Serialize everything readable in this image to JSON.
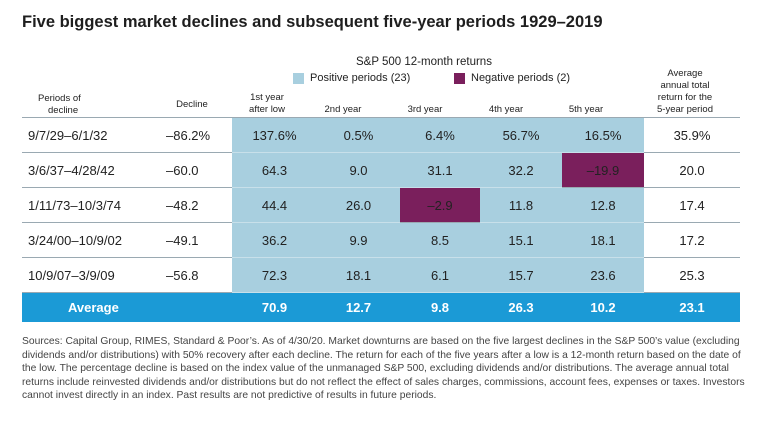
{
  "title": "Five biggest market declines and subsequent five-year periods 1929–2019",
  "legend": {
    "title": "S&P 500 12-month returns",
    "positive": {
      "label": "Positive periods (23)",
      "color": "#a8cfdf"
    },
    "negative": {
      "label": "Negative periods (2)",
      "color": "#7a1f5c"
    }
  },
  "headers": {
    "period": [
      "Periods of",
      "decline"
    ],
    "decline": "Decline",
    "year1": [
      "1st year",
      "after low"
    ],
    "year2": "2nd year",
    "year3": "3rd year",
    "year4": "4th year",
    "year5": "5th year",
    "avg": [
      "Average",
      "annual total",
      "return for the",
      "5-year period"
    ]
  },
  "average_row_color": "#1b9ad6",
  "chart_data": {
    "type": "table",
    "title": "Five biggest market declines and subsequent five-year periods 1929–2019",
    "columns": [
      "Periods of decline",
      "Decline",
      "1st year after low",
      "2nd year",
      "3rd year",
      "4th year",
      "5th year",
      "Average annual total return for the 5-year period"
    ],
    "rows": [
      {
        "period": "9/7/29–6/1/32",
        "decline": "–86.2%",
        "returns": [
          "137.6%",
          "0.5%",
          "6.4%",
          "56.7%",
          "16.5%"
        ],
        "negative": [
          false,
          false,
          false,
          false,
          false
        ],
        "avg": "35.9%"
      },
      {
        "period": "3/6/37–4/28/42",
        "decline": "–60.0",
        "returns": [
          "64.3",
          "9.0",
          "31.1",
          "32.2",
          "–19.9"
        ],
        "negative": [
          false,
          false,
          false,
          false,
          true
        ],
        "avg": "20.0"
      },
      {
        "period": "1/11/73–10/3/74",
        "decline": "–48.2",
        "returns": [
          "44.4",
          "26.0",
          "–2.9",
          "11.8",
          "12.8"
        ],
        "negative": [
          false,
          false,
          true,
          false,
          false
        ],
        "avg": "17.4"
      },
      {
        "period": "3/24/00–10/9/02",
        "decline": "–49.1",
        "returns": [
          "36.2",
          "9.9",
          "8.5",
          "15.1",
          "18.1"
        ],
        "negative": [
          false,
          false,
          false,
          false,
          false
        ],
        "avg": "17.2"
      },
      {
        "period": "10/9/07–3/9/09",
        "decline": "–56.8",
        "returns": [
          "72.3",
          "18.1",
          "6.1",
          "15.7",
          "23.6"
        ],
        "negative": [
          false,
          false,
          false,
          false,
          false
        ],
        "avg": "25.3"
      }
    ],
    "average": {
      "label": "Average",
      "returns": [
        "70.9",
        "12.7",
        "9.8",
        "26.3",
        "10.2"
      ],
      "avg": "23.1"
    }
  },
  "notes": "Sources: Capital Group, RIMES, Standard & Poor’s. As of 4/30/20. Market downturns are based on the five largest declines in the S&P 500’s value (excluding dividends and/or distributions) with 50% recovery after each decline. The return for each of the five years after a low is a 12-month return based on the date of the low. The percentage decline is based on the index value of the unmanaged S&P 500, excluding dividends and/or distributions. The average annual total returns include reinvested dividends and/or distributions but do not reflect the effect of sales charges, commissions, account fees, expenses or taxes. Investors cannot invest directly in an index. Past results are not predictive of results in future periods."
}
